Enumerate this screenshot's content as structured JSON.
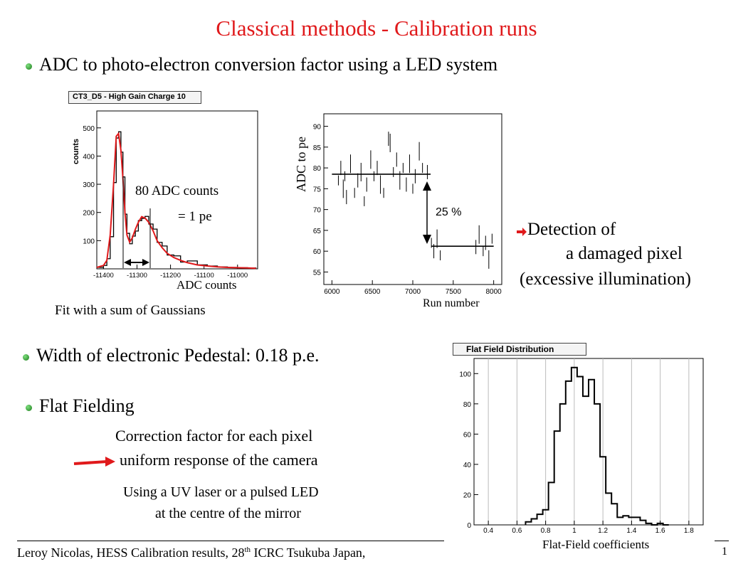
{
  "title": "Classical methods - Calibration runs",
  "bullets": {
    "b1": "ADC to photo-electron conversion factor using a LED system",
    "b2": "Width of electronic Pedestal: 0.18 p.e.",
    "b3": "Flat Fielding"
  },
  "plot1": {
    "header": "CT3_D5 - High Gain Charge 10",
    "ylabel": "counts",
    "annot1": "80 ADC counts",
    "annot2": "= 1 pe",
    "xcaption": "ADC counts",
    "caption": "Fit with a sum of Gaussians"
  },
  "plot2": {
    "ylabel": "ADC to pe",
    "annot": "25 %",
    "xcaption": "Run number"
  },
  "detection": {
    "line1": "Detection of",
    "line2": "a damaged pixel",
    "line3": "(excessive illumination)"
  },
  "flat": {
    "corr1": "Correction factor for each pixel",
    "corr2": "uniform response of the camera",
    "using1": "Using a UV laser or a pulsed LED",
    "using2": "at the centre of the mirror"
  },
  "plot3": {
    "header": "Flat Field Distribution",
    "caption": "Flat-Field coefficients"
  },
  "footer": {
    "text": "Leroy Nicolas, HESS Calibration results,  28",
    "sup": "th",
    "text2": "  ICRC  Tsukuba Japan,",
    "page": "1"
  },
  "chart_data": [
    {
      "type": "line",
      "title": "CT3_D5 - High Gain Charge 10",
      "xlabel": "ADC counts",
      "ylabel": "counts",
      "xlim": [
        -11420,
        -10940
      ],
      "ylim": [
        0,
        560
      ],
      "xticks": [
        -11400,
        -11300,
        -11200,
        -11100,
        -11000
      ],
      "yticks": [
        100,
        200,
        300,
        400,
        500
      ],
      "series": [
        {
          "x": [
            -11420,
            -11400,
            -11390,
            -11380,
            -11370,
            -11362,
            -11355,
            -11348,
            -11342,
            -11336,
            -11330,
            -11322,
            -11314,
            -11305,
            -11296,
            -11286,
            -11276,
            -11265,
            -11252,
            -11240,
            -11225,
            -11210,
            -11190,
            -11170,
            -11150,
            -11120,
            -11090,
            -11060,
            -11030,
            -11000,
            -10970,
            -10945
          ],
          "y": [
            5,
            12,
            30,
            120,
            300,
            470,
            480,
            420,
            320,
            200,
            120,
            95,
            110,
            140,
            165,
            185,
            180,
            165,
            135,
            100,
            75,
            55,
            40,
            30,
            22,
            14,
            10,
            7,
            5,
            4,
            3,
            2
          ]
        }
      ]
    },
    {
      "type": "scatter",
      "xlabel": "Run number",
      "ylabel": "ADC to pe",
      "xlim": [
        5900,
        8100
      ],
      "ylim": [
        52,
        93
      ],
      "xticks": [
        6000,
        6500,
        7000,
        7500,
        8000
      ],
      "yticks": [
        55,
        60,
        65,
        70,
        75,
        80,
        85,
        90
      ],
      "annotations": [
        "25 %"
      ],
      "series": [
        {
          "x": [
            6080,
            6110,
            6140,
            6160,
            6180,
            6230,
            6280,
            6320,
            6360,
            6400,
            6430,
            6480,
            6520,
            6560,
            6600,
            6640,
            6700,
            6720,
            6760,
            6800,
            6840,
            6880,
            6920,
            6960,
            7000,
            7030,
            7080,
            7120,
            7180
          ],
          "y": [
            77,
            80,
            75,
            78,
            73,
            81,
            74,
            77,
            79,
            72,
            76,
            82,
            78,
            80,
            76,
            74,
            87,
            86,
            79,
            82,
            77,
            80,
            76,
            81,
            75,
            78,
            84,
            80,
            79
          ]
        },
        {
          "x": [
            7230,
            7260,
            7300,
            7340,
            7780,
            7820,
            7870,
            7900,
            7940,
            7980
          ],
          "y": [
            62,
            60,
            63,
            59,
            61,
            64,
            60,
            62,
            58,
            63
          ]
        }
      ]
    },
    {
      "type": "bar",
      "title": "Flat Field Distribution",
      "xlabel": "Flat-Field coefficients",
      "xlim": [
        0.3,
        1.9
      ],
      "ylim": [
        0,
        110
      ],
      "xticks": [
        0.4,
        0.6,
        0.8,
        1,
        1.2,
        1.4,
        1.6,
        1.8
      ],
      "yticks": [
        0,
        20,
        40,
        60,
        80,
        100
      ],
      "bin_width": 0.04,
      "x": [
        0.68,
        0.72,
        0.76,
        0.8,
        0.84,
        0.88,
        0.92,
        0.96,
        1.0,
        1.04,
        1.08,
        1.12,
        1.16,
        1.2,
        1.24,
        1.28,
        1.32,
        1.36,
        1.4,
        1.44,
        1.48,
        1.52,
        1.56,
        1.6,
        1.64
      ],
      "values": [
        2,
        4,
        7,
        10,
        28,
        62,
        80,
        95,
        104,
        98,
        85,
        96,
        80,
        45,
        21,
        14,
        5,
        6,
        5,
        5,
        3,
        1,
        0,
        1,
        0
      ]
    }
  ]
}
